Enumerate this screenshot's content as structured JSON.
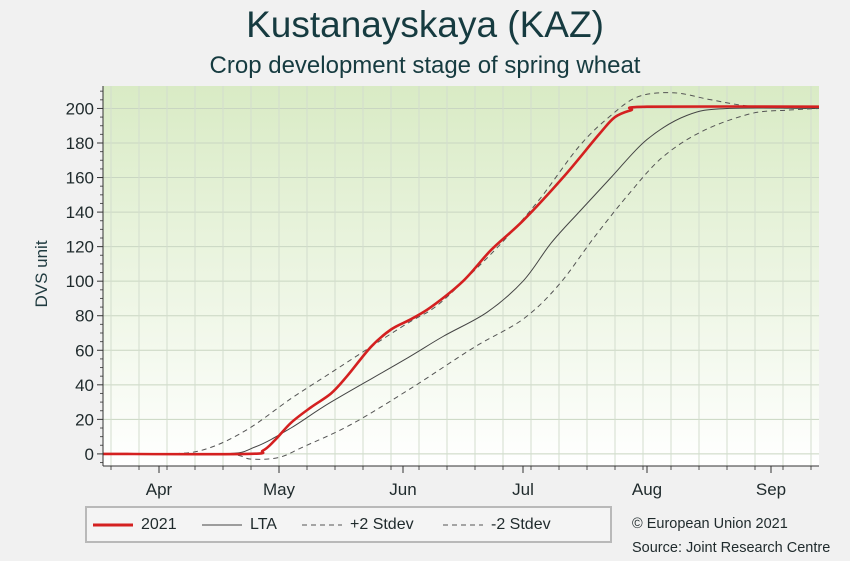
{
  "title": "Kustanayskaya (KAZ)",
  "subtitle": "Crop development stage of spring wheat",
  "credits": {
    "line1": "© European Union 2021",
    "line2": "Source: Joint Research Centre"
  },
  "colors": {
    "series_2021": "#d42020",
    "lta": "#444444",
    "stdev": "#555555",
    "plot_top": "#d9ebc5",
    "plot_bottom": "#ffffff"
  },
  "chart_data": {
    "type": "line",
    "title": "Kustanayskaya (KAZ)",
    "subtitle": "Crop development stage of spring wheat",
    "xlabel": "",
    "ylabel": "DVS unit",
    "xlim": [
      "2021-03-27",
      "2021-09-22"
    ],
    "ylim": [
      -7,
      213
    ],
    "yticks": [
      0,
      20,
      40,
      60,
      80,
      100,
      120,
      140,
      160,
      180,
      200
    ],
    "xtick_labels": [
      "Apr",
      "May",
      "Jun",
      "Jul",
      "Aug",
      "Sep"
    ],
    "xtick_dates": [
      "2021-04-10",
      "2021-05-10",
      "2021-06-10",
      "2021-07-10",
      "2021-08-10",
      "2021-09-10"
    ],
    "grid": true,
    "legend_position": "bottom-left",
    "series": [
      {
        "name": "2021",
        "style": "solid-thick",
        "points": [
          [
            "2021-03-27",
            0
          ],
          [
            "2021-05-02",
            0
          ],
          [
            "2021-05-06",
            2
          ],
          [
            "2021-05-09",
            8
          ],
          [
            "2021-05-13",
            18
          ],
          [
            "2021-05-18",
            27
          ],
          [
            "2021-05-23",
            35
          ],
          [
            "2021-05-27",
            45
          ],
          [
            "2021-06-02",
            62
          ],
          [
            "2021-06-07",
            72
          ],
          [
            "2021-06-12",
            78
          ],
          [
            "2021-06-17",
            85
          ],
          [
            "2021-06-25",
            100
          ],
          [
            "2021-07-02",
            118
          ],
          [
            "2021-07-10",
            135
          ],
          [
            "2021-07-20",
            160
          ],
          [
            "2021-07-29",
            185
          ],
          [
            "2021-08-02",
            195
          ],
          [
            "2021-08-06",
            199
          ],
          [
            "2021-08-10",
            201
          ],
          [
            "2021-09-22",
            201
          ]
        ]
      },
      {
        "name": "LTA",
        "style": "solid-thin",
        "points": [
          [
            "2021-03-27",
            0
          ],
          [
            "2021-04-26",
            0
          ],
          [
            "2021-05-04",
            4
          ],
          [
            "2021-05-13",
            15
          ],
          [
            "2021-05-23",
            30
          ],
          [
            "2021-06-10",
            54
          ],
          [
            "2021-06-20",
            68
          ],
          [
            "2021-07-01",
            82
          ],
          [
            "2021-07-10",
            100
          ],
          [
            "2021-07-17",
            122
          ],
          [
            "2021-07-24",
            140
          ],
          [
            "2021-08-01",
            160
          ],
          [
            "2021-08-10",
            182
          ],
          [
            "2021-08-20",
            196
          ],
          [
            "2021-08-30",
            200
          ],
          [
            "2021-09-22",
            200
          ]
        ]
      },
      {
        "name": "+2 Stdev",
        "style": "dashed",
        "points": [
          [
            "2021-03-27",
            0
          ],
          [
            "2021-04-13",
            0
          ],
          [
            "2021-04-22",
            3
          ],
          [
            "2021-05-02",
            14
          ],
          [
            "2021-05-13",
            32
          ],
          [
            "2021-05-23",
            47
          ],
          [
            "2021-06-10",
            74
          ],
          [
            "2021-06-18",
            85
          ],
          [
            "2021-06-26",
            102
          ],
          [
            "2021-07-05",
            123
          ],
          [
            "2021-07-14",
            147
          ],
          [
            "2021-07-24",
            178
          ],
          [
            "2021-08-01",
            196
          ],
          [
            "2021-08-08",
            207
          ],
          [
            "2021-08-17",
            209
          ],
          [
            "2021-08-26",
            205
          ],
          [
            "2021-09-06",
            201
          ],
          [
            "2021-09-22",
            200
          ]
        ]
      },
      {
        "name": "-2 Stdev",
        "style": "dashed",
        "points": [
          [
            "2021-03-27",
            0
          ],
          [
            "2021-04-26",
            0
          ],
          [
            "2021-05-03",
            -3
          ],
          [
            "2021-05-10",
            -2
          ],
          [
            "2021-05-16",
            4
          ],
          [
            "2021-05-28",
            17
          ],
          [
            "2021-06-12",
            38
          ],
          [
            "2021-06-28",
            62
          ],
          [
            "2021-07-10",
            78
          ],
          [
            "2021-07-19",
            98
          ],
          [
            "2021-07-28",
            126
          ],
          [
            "2021-08-06",
            152
          ],
          [
            "2021-08-14",
            172
          ],
          [
            "2021-08-24",
            187
          ],
          [
            "2021-09-05",
            197
          ],
          [
            "2021-09-14",
            199
          ],
          [
            "2021-09-22",
            200
          ]
        ]
      }
    ]
  }
}
